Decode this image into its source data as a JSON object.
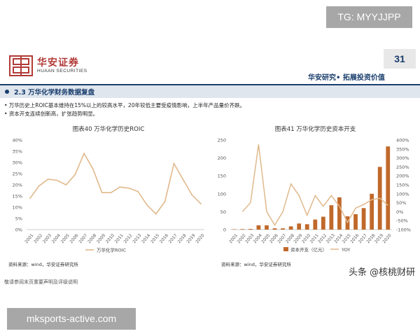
{
  "overlays": {
    "tg_label": "TG: MYYJJPP",
    "site_label": "mksports-active.com",
    "watermark": "头条 @核桃财研"
  },
  "header": {
    "brand_cn": "华安证券",
    "brand_en": "HUAAN SECURITIES",
    "page_number": "31",
    "tagline": "华安研究• 拓展投资价值"
  },
  "section": {
    "title": "2.3 万华化学财务数据复盘"
  },
  "bullets": [
    "万华历史上ROIC基本维持在15%以上的较高水平，20年较低主要受疫情影响，上半年产品量价齐跌。",
    "资本开支连续创新高，扩张趋势明显。"
  ],
  "footer": {
    "note": "敬请参阅末页重要声明及评级说明"
  },
  "colors": {
    "brand_red": "#b23a37",
    "navy": "#1a3e6d",
    "bar": "#c0692b",
    "line": "#e0b98c",
    "section_bg": "#dfe6ee"
  },
  "chart_data": [
    {
      "type": "line",
      "title": "图表40 万华化学历史ROIC",
      "x": [
        "2001",
        "2002",
        "2003",
        "2004",
        "2005",
        "2006",
        "2007",
        "2008",
        "2009",
        "2010",
        "2011",
        "2012",
        "2013",
        "2014",
        "2015",
        "2016",
        "2017",
        "2018",
        "2019",
        "2020"
      ],
      "series": [
        {
          "name": "万华化学ROIC",
          "values": [
            14,
            19.5,
            22.5,
            22,
            20,
            24.5,
            34,
            27,
            16.5,
            16.5,
            19,
            18.5,
            17,
            11,
            7,
            12.5,
            29.5,
            22.5,
            15.5,
            11.5
          ]
        }
      ],
      "ylim": [
        0,
        40
      ],
      "yticks": [
        "0%",
        "5%",
        "10%",
        "15%",
        "20%",
        "25%",
        "30%",
        "35%",
        "40%"
      ],
      "source": "资料来源：wind，华安证券研究所",
      "legend": "bottom"
    },
    {
      "type": "bar",
      "title": "图表41 万华化学历史资本开支",
      "x": [
        "2001",
        "2002",
        "2003",
        "2004",
        "2005",
        "2006",
        "2007",
        "2008",
        "2009",
        "2010",
        "2011",
        "2012",
        "2013",
        "2014",
        "2015",
        "2016",
        "2017",
        "2018",
        "2019",
        "2020"
      ],
      "series": [
        {
          "name": "资本开支（亿元）",
          "axis": "left",
          "values": [
            1,
            1.5,
            2,
            12,
            12,
            3.5,
            3.5,
            9,
            17,
            15,
            28,
            36,
            68,
            90,
            37,
            43,
            60,
            100,
            175,
            232
          ]
        },
        {
          "name": "YOY",
          "axis": "right",
          "values": [
            null,
            0,
            50,
            375,
            0,
            -75,
            0,
            155,
            90,
            -20,
            90,
            30,
            90,
            30,
            -60,
            20,
            40,
            67,
            75,
            35
          ]
        }
      ],
      "ylim_left": [
        0,
        250
      ],
      "ylim_right": [
        -100,
        400
      ],
      "yticks_left": [
        "0",
        "50",
        "100",
        "150",
        "200",
        "250"
      ],
      "yticks_right": [
        "-100%",
        "-50%",
        "0%",
        "50%",
        "100%",
        "150%",
        "200%",
        "250%",
        "300%",
        "350%",
        "400%"
      ],
      "source": "资料来源：wind，华安证券研究所",
      "legend": "bottom"
    }
  ]
}
